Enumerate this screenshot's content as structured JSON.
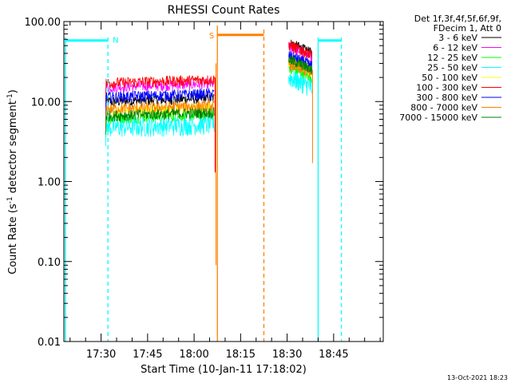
{
  "chart_data": {
    "type": "line",
    "title": "RHESSI Count Rates",
    "xlabel": "Start Time (10-Jan-11 17:18:02)",
    "ylabel_parts": [
      "Count Rate (s",
      "-1",
      " detector segment",
      "-1",
      ")"
    ],
    "yscale": "log",
    "ylim": [
      0.01,
      100
    ],
    "xlim_minutes": [
      1038,
      1141
    ],
    "x_ticks": [
      {
        "label": "17:30",
        "minute": 1050
      },
      {
        "label": "17:45",
        "minute": 1065
      },
      {
        "label": "18:00",
        "minute": 1080
      },
      {
        "label": "18:15",
        "minute": 1095
      },
      {
        "label": "18:30",
        "minute": 1110
      },
      {
        "label": "18:45",
        "minute": 1125
      }
    ],
    "y_ticks": [
      {
        "label": "100.00",
        "value": 100
      },
      {
        "label": "10.00",
        "value": 10
      },
      {
        "label": "1.00",
        "value": 1
      },
      {
        "label": "0.10",
        "value": 0.1
      },
      {
        "label": "0.01",
        "value": 0.01
      }
    ],
    "legend_header": [
      "Det 1f,3f,4f,5f,6f,9f,",
      "FDecim 1, Att 0"
    ],
    "series": [
      {
        "name": "3 - 6 keV",
        "color": "#000000",
        "before": 10.5,
        "after": 40
      },
      {
        "name": "6 - 12 keV",
        "color": "#ff00ff",
        "before": 16,
        "after": 36
      },
      {
        "name": "12 - 25 keV",
        "color": "#00ff00",
        "before": 6.5,
        "after": 20
      },
      {
        "name": "25 - 50 keV",
        "color": "#00ffff",
        "before": 5,
        "after": 15
      },
      {
        "name": "50 - 100 keV",
        "color": "#ffff00",
        "before": 8,
        "after": 24
      },
      {
        "name": "100 - 300 keV",
        "color": "#ff0000",
        "before": 18,
        "after": 38
      },
      {
        "name": "300 - 800 keV",
        "color": "#0000ff",
        "before": 12,
        "after": 28
      },
      {
        "name": "800 - 7000 keV",
        "color": "#ff8000",
        "before": 8.5,
        "after": 22
      },
      {
        "name": "7000 - 15000 keV",
        "color": "#008000",
        "before": 7,
        "after": 25
      }
    ],
    "segments": {
      "before": [
        1051.5,
        1086.5
      ],
      "after": [
        1110.5,
        1118
      ]
    },
    "night_markers": {
      "label": "N",
      "color": "#00ffff",
      "start_minute": 1038.5,
      "end_minute": 1052.2,
      "end2_minute": 1127.5,
      "start2_minute": 1120,
      "level": 58
    },
    "saa_markers": {
      "label": "S",
      "color": "#ff8000",
      "start_minute": 1087.5,
      "end_minute": 1102.5,
      "level": 68
    }
  },
  "footer": {
    "date": "13-Oct-2021 18:23"
  }
}
